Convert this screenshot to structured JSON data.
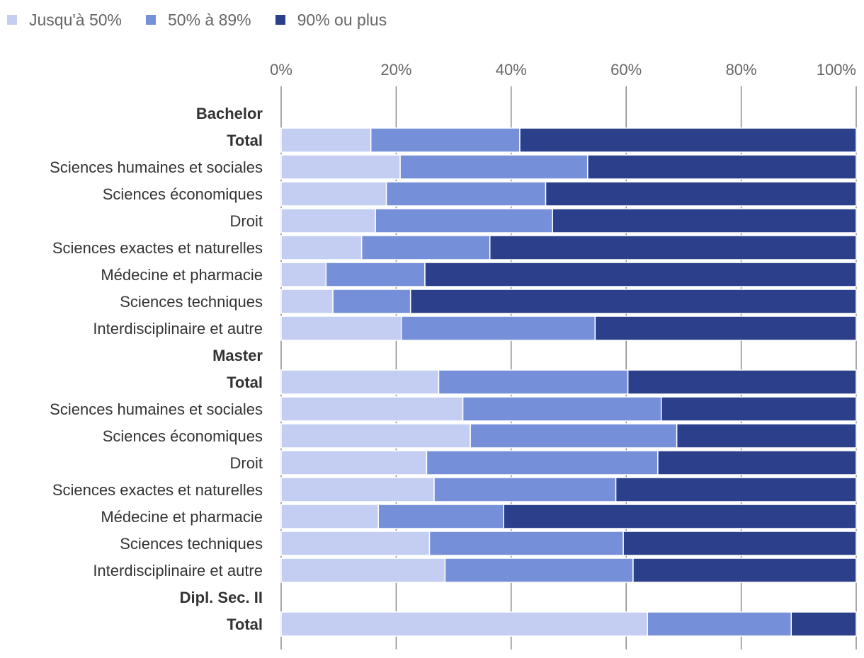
{
  "chart_data": {
    "type": "bar",
    "orientation": "horizontal",
    "stacked": true,
    "legend_position": "top-left",
    "grid": true,
    "xlim": [
      0,
      100
    ],
    "x_ticks": [
      "0%",
      "20%",
      "40%",
      "60%",
      "80%",
      "100%"
    ],
    "categories": [
      "Bachelor",
      "Total",
      "Sciences humaines et sociales",
      "Sciences économiques",
      "Droit",
      "Sciences exactes et naturelles",
      "Médecine et pharmacie",
      "Sciences techniques",
      "Interdisciplinaire et autre",
      "Master",
      "Total",
      "Sciences humaines et sociales",
      "Sciences économiques",
      "Droit",
      "Sciences exactes et naturelles",
      "Médecine et pharmacie",
      "Sciences techniques",
      "Interdisciplinaire et autre",
      "Dipl. Sec. II",
      "Total"
    ],
    "bold_categories": [
      0,
      1,
      9,
      10,
      18,
      19
    ],
    "series": [
      {
        "name": "Jusqu'à 50%",
        "color": "#c3cef2",
        "values": [
          null,
          15.6,
          20.7,
          18.3,
          16.4,
          14.0,
          7.8,
          9.0,
          20.9,
          null,
          27.4,
          31.6,
          32.9,
          25.3,
          26.6,
          16.9,
          25.8,
          28.5,
          null,
          63.7
        ]
      },
      {
        "name": "50% à 89%",
        "color": "#758fd9",
        "values": [
          null,
          25.9,
          32.6,
          27.7,
          30.8,
          22.3,
          17.2,
          13.5,
          33.7,
          null,
          32.9,
          34.5,
          35.9,
          40.2,
          31.6,
          21.8,
          33.7,
          32.7,
          null,
          25.0
        ]
      },
      {
        "name": "90% ou plus",
        "color": "#2b3f8a",
        "values": [
          null,
          58.5,
          46.7,
          54.0,
          52.8,
          63.7,
          75.0,
          77.5,
          45.4,
          null,
          39.7,
          33.9,
          31.2,
          34.5,
          41.8,
          61.3,
          40.5,
          38.8,
          null,
          11.3
        ]
      }
    ]
  }
}
